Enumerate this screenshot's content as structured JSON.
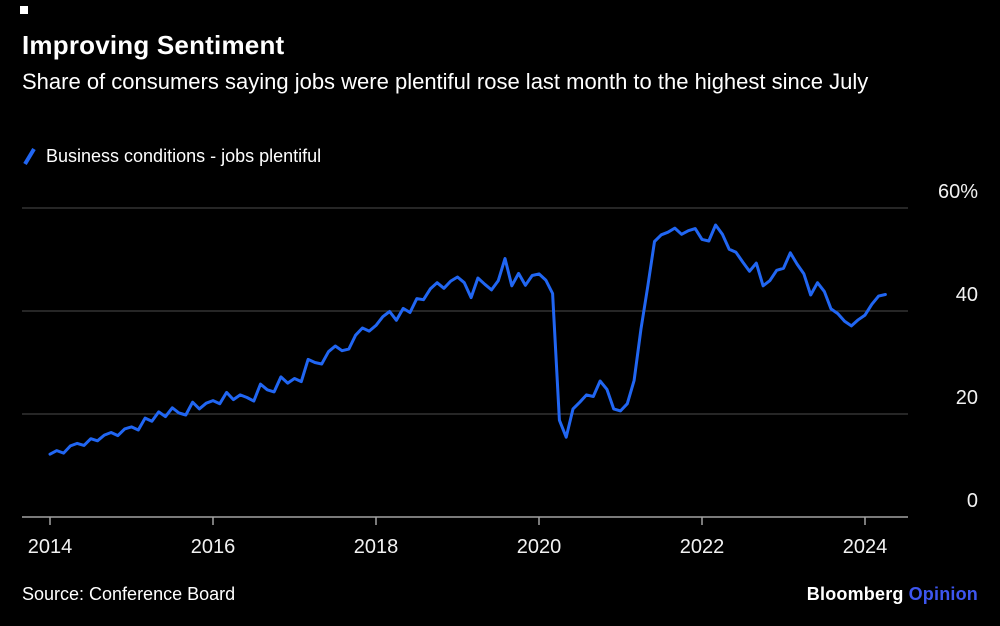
{
  "header": {
    "title": "Improving Sentiment",
    "subtitle": "Share of consumers saying jobs were plentiful rose last month to the highest since July"
  },
  "legend": {
    "label": "Business conditions - jobs plentiful"
  },
  "footer": {
    "source": "Source: Conference Board",
    "brand": "Bloomberg",
    "brand_suffix": "Opinion"
  },
  "colors": {
    "background": "#000000",
    "line": "#2166f2",
    "grid": "#4d4d4d",
    "axis": "#a3a3a3",
    "tick_text": "#f2f2f2",
    "text": "#ffffff",
    "opinion_blue": "#3d56f0"
  },
  "chart_data": {
    "type": "line",
    "title": "Improving Sentiment",
    "xlabel": "",
    "ylabel": "Share of consumers saying jobs plentiful (%)",
    "ylim": [
      0,
      60
    ],
    "yticks": [
      0,
      20,
      40,
      60
    ],
    "ytick_labels": [
      "0",
      "20",
      "40",
      "60%"
    ],
    "xticks": [
      2014,
      2016,
      2018,
      2020,
      2022,
      2024
    ],
    "xtick_labels": [
      "2014",
      "2016",
      "2018",
      "2020",
      "2022",
      "2024"
    ],
    "grid": "horizontal",
    "legend_position": "top-left",
    "series": [
      {
        "name": "Business conditions - jobs plentiful",
        "start_year": 2014,
        "frequency": "monthly",
        "values": [
          12.2,
          12.9,
          12.4,
          13.8,
          14.3,
          13.9,
          15.2,
          14.8,
          15.9,
          16.4,
          15.8,
          17.1,
          17.5,
          16.9,
          19.2,
          18.6,
          20.4,
          19.5,
          21.2,
          20.2,
          19.8,
          22.3,
          21.0,
          22.1,
          22.6,
          22.0,
          24.2,
          22.8,
          23.7,
          23.2,
          22.5,
          25.8,
          24.7,
          24.3,
          27.2,
          26.0,
          26.9,
          26.3,
          30.6,
          30.0,
          29.7,
          32.1,
          33.2,
          32.3,
          32.6,
          35.3,
          36.7,
          36.1,
          37.2,
          38.9,
          39.9,
          38.2,
          40.5,
          39.7,
          42.4,
          42.2,
          44.3,
          45.5,
          44.4,
          45.8,
          46.6,
          45.5,
          42.6,
          46.4,
          45.2,
          44.1,
          45.9,
          50.2,
          44.9,
          47.3,
          45.0,
          46.9,
          47.2,
          46.0,
          43.4,
          18.8,
          15.5,
          21.0,
          22.3,
          23.7,
          23.4,
          26.4,
          24.8,
          21.0,
          20.6,
          22.0,
          26.5,
          36.4,
          44.7,
          53.5,
          54.8,
          55.3,
          56.1,
          54.9,
          55.6,
          56.0,
          53.9,
          53.6,
          56.7,
          54.9,
          52.0,
          51.4,
          49.5,
          47.7,
          49.3,
          44.9,
          45.9,
          47.9,
          48.3,
          51.3,
          49.1,
          47.2,
          43.1,
          45.5,
          43.8,
          40.4,
          39.5,
          38.0,
          37.1,
          38.3,
          39.2,
          41.3,
          42.9,
          43.2
        ]
      }
    ]
  }
}
